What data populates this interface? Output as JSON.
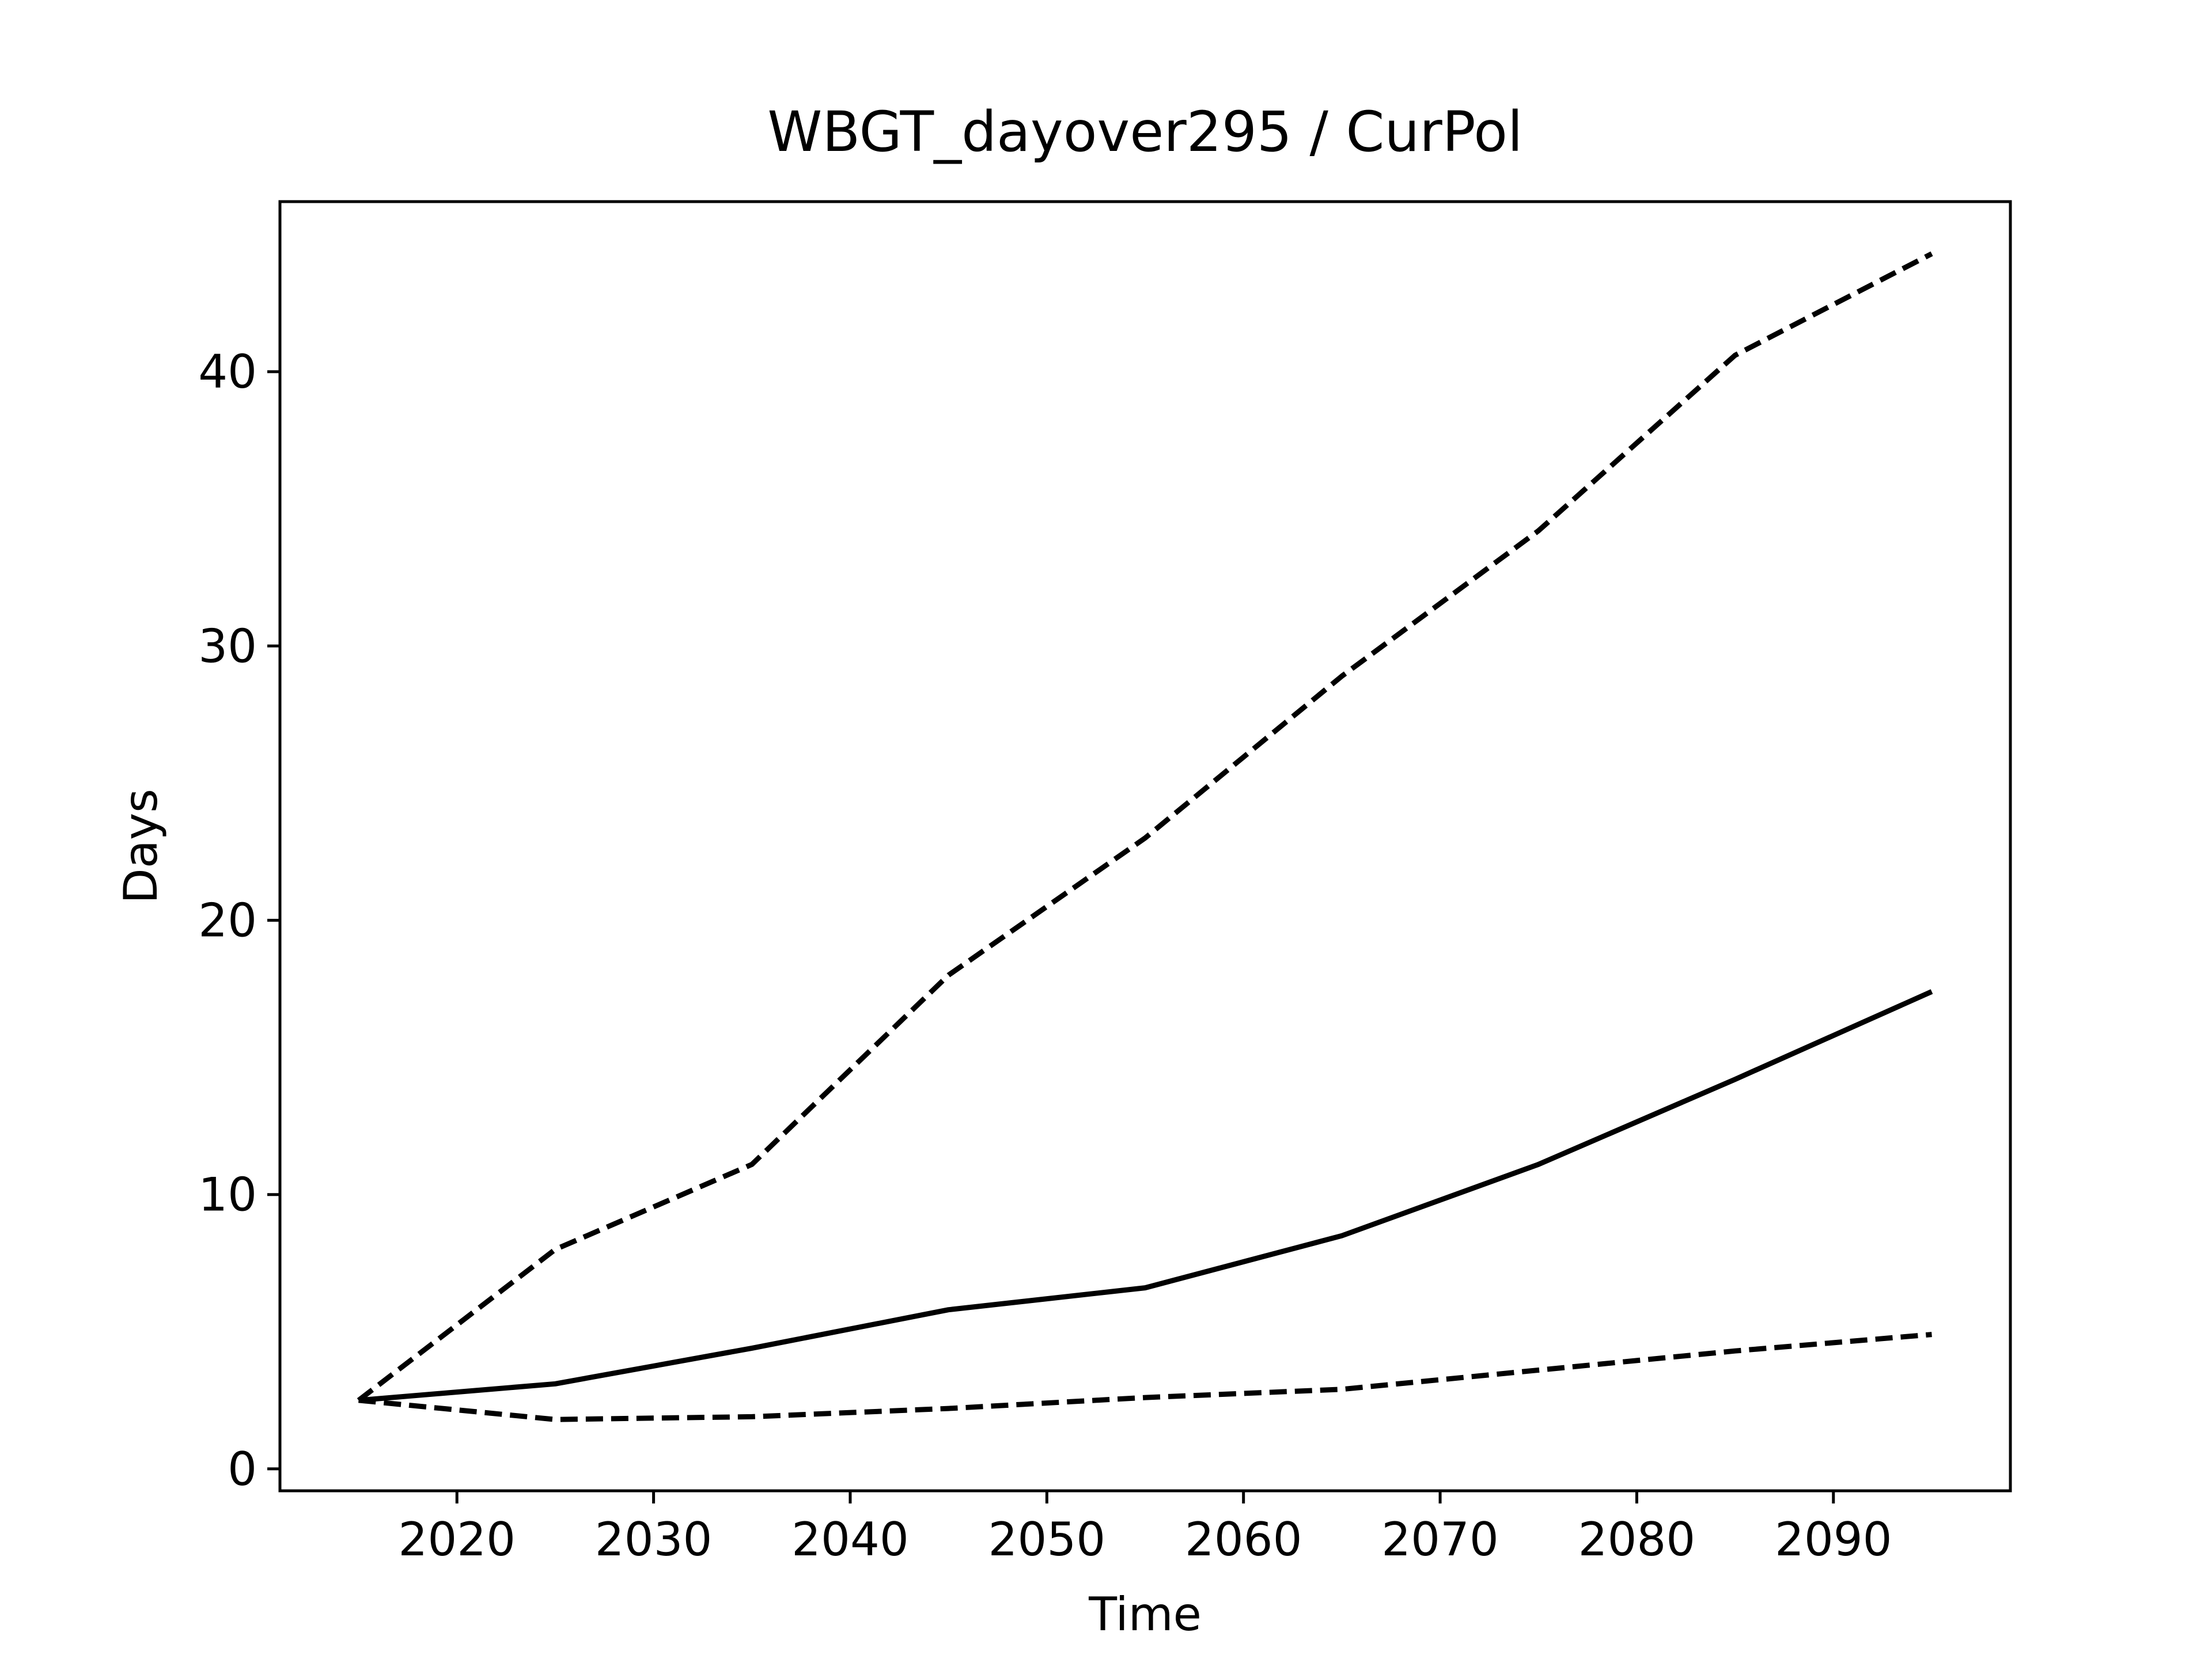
{
  "chart_data": {
    "type": "line",
    "title": "WBGT_dayover295 / CurPol",
    "xlabel": "Time",
    "ylabel": "Days",
    "xlim": [
      2011,
      2099
    ],
    "ylim": [
      -0.8,
      46.2
    ],
    "x_ticks": [
      2020,
      2030,
      2040,
      2050,
      2060,
      2070,
      2080,
      2090
    ],
    "y_ticks": [
      0,
      10,
      20,
      30,
      40
    ],
    "grid": false,
    "legend": "none",
    "series": [
      {
        "style": "dashed",
        "color": "#000000",
        "x": [
          2015,
          2025,
          2035,
          2045,
          2055,
          2065,
          2075,
          2085,
          2095
        ],
        "y": [
          2.5,
          8.0,
          11.1,
          18.0,
          23.0,
          28.9,
          34.2,
          40.6,
          44.3
        ]
      },
      {
        "style": "solid",
        "color": "#000000",
        "x": [
          2015,
          2025,
          2035,
          2045,
          2055,
          2065,
          2075,
          2085,
          2095
        ],
        "y": [
          2.5,
          3.1,
          4.4,
          5.8,
          6.6,
          8.5,
          11.1,
          14.2,
          17.4
        ]
      },
      {
        "style": "dashed",
        "color": "#000000",
        "x": [
          2015,
          2025,
          2035,
          2045,
          2055,
          2065,
          2075,
          2085,
          2095
        ],
        "y": [
          2.5,
          1.8,
          1.9,
          2.2,
          2.6,
          2.9,
          3.6,
          4.3,
          4.9
        ]
      }
    ]
  }
}
